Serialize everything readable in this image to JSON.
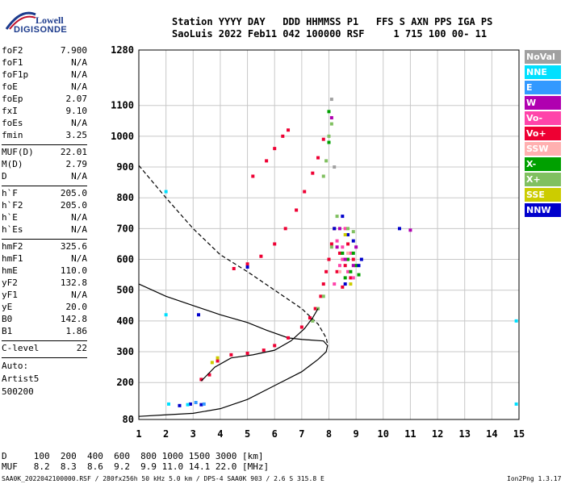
{
  "logo": {
    "line1": "Lowell",
    "line2": "DIGISONDE"
  },
  "header": {
    "labels": "Station YYYY DAY   DDD HHMMSS P1   FFS S AXN PPS IGA PS",
    "values": "SaoLuis 2022 Feb11 042 100000 RSF     1 715 100 00- 11"
  },
  "params": {
    "group1": [
      {
        "k": "foF2",
        "v": "7.900"
      },
      {
        "k": "foF1",
        "v": "N/A"
      },
      {
        "k": "foF1p",
        "v": "N/A"
      },
      {
        "k": "foE",
        "v": "N/A"
      },
      {
        "k": "foEp",
        "v": "2.07"
      },
      {
        "k": "fxI",
        "v": "9.10"
      },
      {
        "k": "foEs",
        "v": "N/A"
      },
      {
        "k": "fmin",
        "v": "3.25"
      }
    ],
    "group2": [
      {
        "k": "MUF(D)",
        "v": "22.01"
      },
      {
        "k": "M(D)",
        "v": "2.79"
      },
      {
        "k": "D",
        "v": "N/A"
      }
    ],
    "group3": [
      {
        "k": "h`F",
        "v": "205.0"
      },
      {
        "k": "h`F2",
        "v": "205.0"
      },
      {
        "k": "h`E",
        "v": "N/A"
      },
      {
        "k": "h`Es",
        "v": "N/A"
      }
    ],
    "group4": [
      {
        "k": "hmF2",
        "v": "325.6"
      },
      {
        "k": "hmF1",
        "v": "N/A"
      },
      {
        "k": "hmE",
        "v": "110.0"
      },
      {
        "k": "yF2",
        "v": "132.8"
      },
      {
        "k": "yF1",
        "v": "N/A"
      },
      {
        "k": "yE",
        "v": "20.0"
      },
      {
        "k": "B0",
        "v": "142.8"
      },
      {
        "k": "B1",
        "v": "1.86"
      }
    ],
    "group5": [
      {
        "k": "C-level",
        "v": "22"
      }
    ],
    "auto": [
      "Auto:",
      "Artist5",
      "500200"
    ]
  },
  "legend": [
    {
      "label": "NoVal",
      "color": "#a0a0a0"
    },
    {
      "label": "NNE",
      "color": "#00e0ff"
    },
    {
      "label": "E",
      "color": "#3399ff"
    },
    {
      "label": "W",
      "color": "#b000b0"
    },
    {
      "label": "Vo-",
      "color": "#ff44aa"
    },
    {
      "label": "Vo+",
      "color": "#ee0033"
    },
    {
      "label": "SSW",
      "color": "#ffb0b0"
    },
    {
      "label": "X-",
      "color": "#00a000"
    },
    {
      "label": "X+",
      "color": "#80c060"
    },
    {
      "label": "SSE",
      "color": "#cccc00"
    },
    {
      "label": "NNW",
      "color": "#0000cc"
    }
  ],
  "bottom": {
    "d_row": "D     100  200  400  600  800 1000 1500 3000 [km]",
    "muf_row": "MUF   8.2  8.3  8.6  9.2  9.9 11.0 14.1 22.0 [MHz]",
    "footer_left": "SAA0K_2022042100000.RSF / 280fx256h 50 kHz 5.0 km / DPS-4 SAA0K 903 / 2.6 S 315.8 E",
    "footer_right": "Ion2Png 1.3.17"
  },
  "chart_data": {
    "type": "scatter",
    "x_ticks": [
      1,
      2,
      3,
      4,
      5,
      6,
      7,
      8,
      9,
      10,
      11,
      12,
      13,
      14,
      15
    ],
    "y_ticks": [
      80,
      200,
      300,
      400,
      500,
      600,
      700,
      800,
      900,
      1000,
      1100,
      1280
    ],
    "xlim": [
      1,
      15
    ],
    "ylim": [
      80,
      1280
    ],
    "grid": true,
    "series": [
      {
        "name": "Vo+",
        "color": "#ee0033",
        "points": [
          [
            3.3,
            210
          ],
          [
            3.6,
            225
          ],
          [
            3.9,
            270
          ],
          [
            4.4,
            290
          ],
          [
            5,
            295
          ],
          [
            5.6,
            305
          ],
          [
            6,
            320
          ],
          [
            6.5,
            345
          ],
          [
            7,
            380
          ],
          [
            7.3,
            410
          ],
          [
            7.5,
            440
          ],
          [
            7.7,
            480
          ],
          [
            7.8,
            520
          ],
          [
            7.9,
            560
          ],
          [
            8,
            600
          ],
          [
            8.1,
            650
          ],
          [
            8.2,
            700
          ],
          [
            8.3,
            560
          ],
          [
            8.4,
            620
          ],
          [
            8.5,
            510
          ],
          [
            8.6,
            580
          ],
          [
            8.7,
            650
          ],
          [
            8.8,
            540
          ],
          [
            8.9,
            600
          ],
          [
            4.5,
            570
          ],
          [
            5,
            585
          ],
          [
            5.5,
            610
          ],
          [
            6,
            650
          ],
          [
            6.4,
            700
          ],
          [
            6.8,
            760
          ],
          [
            7.1,
            820
          ],
          [
            7.4,
            880
          ],
          [
            7.6,
            930
          ],
          [
            7.8,
            990
          ],
          [
            5.2,
            870
          ],
          [
            5.7,
            920
          ],
          [
            6,
            960
          ],
          [
            6.3,
            1000
          ],
          [
            6.5,
            1020
          ]
        ]
      },
      {
        "name": "Vo-",
        "color": "#ff44aa",
        "points": [
          [
            8.2,
            520
          ],
          [
            8.4,
            580
          ],
          [
            8.5,
            640
          ],
          [
            8.6,
            700
          ],
          [
            8.7,
            560
          ],
          [
            8.8,
            620
          ],
          [
            8.3,
            660
          ],
          [
            8.9,
            540
          ],
          [
            8.5,
            600
          ]
        ]
      },
      {
        "name": "X-",
        "color": "#00a000",
        "points": [
          [
            8.6,
            540
          ],
          [
            8.7,
            600
          ],
          [
            8.8,
            560
          ],
          [
            8.9,
            620
          ],
          [
            9,
            580
          ],
          [
            9.1,
            550
          ],
          [
            8.5,
            620
          ],
          [
            8,
            1080
          ],
          [
            8,
            980
          ]
        ]
      },
      {
        "name": "X+",
        "color": "#80c060",
        "points": [
          [
            7.4,
            400
          ],
          [
            7.6,
            440
          ],
          [
            7.8,
            480
          ],
          [
            8.1,
            640
          ],
          [
            8.3,
            740
          ],
          [
            8.7,
            700
          ],
          [
            8.9,
            690
          ],
          [
            7.8,
            870
          ],
          [
            7.9,
            920
          ],
          [
            8,
            1000
          ],
          [
            8.1,
            1040
          ]
        ]
      },
      {
        "name": "NNW",
        "color": "#0000cc",
        "points": [
          [
            8.2,
            700
          ],
          [
            8.5,
            740
          ],
          [
            8.6,
            520
          ],
          [
            8.7,
            680
          ],
          [
            8.9,
            660
          ],
          [
            9.1,
            580
          ],
          [
            9.2,
            600
          ],
          [
            3.2,
            420
          ],
          [
            2.5,
            125
          ],
          [
            2.9,
            130
          ],
          [
            3.3,
            128
          ],
          [
            5,
            575
          ],
          [
            10.6,
            700
          ]
        ]
      },
      {
        "name": "NNE",
        "color": "#00e0ff",
        "points": [
          [
            2,
            820
          ],
          [
            2,
            420
          ],
          [
            2.1,
            130
          ],
          [
            2.8,
            128
          ],
          [
            14.9,
            400
          ],
          [
            14.9,
            130
          ]
        ]
      },
      {
        "name": "W",
        "color": "#b000b0",
        "points": [
          [
            8.3,
            640
          ],
          [
            8.6,
            600
          ],
          [
            8.9,
            580
          ],
          [
            9,
            640
          ],
          [
            8.4,
            700
          ],
          [
            11,
            695
          ],
          [
            8.1,
            1060
          ]
        ]
      },
      {
        "name": "SSE",
        "color": "#cccc00",
        "points": [
          [
            8.6,
            680
          ],
          [
            8.8,
            520
          ],
          [
            3.7,
            265
          ],
          [
            3.9,
            280
          ]
        ]
      },
      {
        "name": "E",
        "color": "#3399ff",
        "points": [
          [
            3.1,
            135
          ],
          [
            3.4,
            130
          ]
        ]
      },
      {
        "name": "NoVal",
        "color": "#a0a0a0",
        "points": [
          [
            8.1,
            1120
          ],
          [
            8.2,
            900
          ]
        ]
      },
      {
        "name": "SSW",
        "color": "#ffb0b0",
        "points": [
          [
            8.4,
            560
          ],
          [
            8.7,
            620
          ]
        ]
      }
    ],
    "profile_solid": [
      [
        1,
        90
      ],
      [
        2,
        95
      ],
      [
        3,
        100
      ],
      [
        4,
        115
      ],
      [
        5,
        145
      ],
      [
        6,
        190
      ],
      [
        7,
        235
      ],
      [
        7.6,
        275
      ],
      [
        7.9,
        300
      ],
      [
        7.95,
        320
      ],
      [
        7.8,
        335
      ],
      [
        7,
        340
      ],
      [
        6.5,
        345
      ],
      [
        5.7,
        370
      ],
      [
        5,
        395
      ],
      [
        4,
        420
      ],
      [
        3,
        450
      ],
      [
        2,
        480
      ],
      [
        1,
        520
      ]
    ],
    "profile_dashed": [
      [
        1,
        905
      ],
      [
        2,
        800
      ],
      [
        3,
        700
      ],
      [
        4,
        615
      ],
      [
        5,
        560
      ],
      [
        6,
        500
      ],
      [
        7,
        440
      ],
      [
        7.6,
        390
      ],
      [
        7.9,
        345
      ],
      [
        7.95,
        325
      ]
    ],
    "trace_black": [
      [
        3.3,
        205
      ],
      [
        3.8,
        250
      ],
      [
        4.4,
        280
      ],
      [
        5.2,
        290
      ],
      [
        6,
        305
      ],
      [
        6.6,
        335
      ],
      [
        7.1,
        375
      ],
      [
        7.4,
        410
      ],
      [
        7.6,
        440
      ]
    ]
  }
}
